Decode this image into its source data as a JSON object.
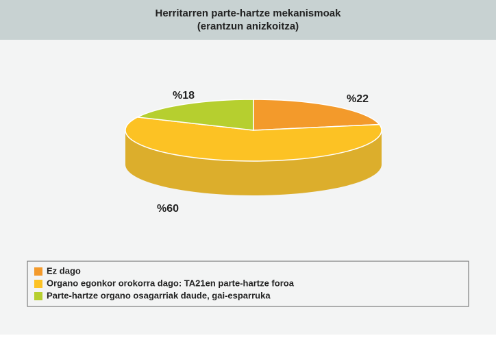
{
  "chart_data": {
    "type": "pie",
    "title": [
      "Herritarren parte-hartze mekanismoak",
      "(erantzun anizkoitza)"
    ],
    "categories": [
      "Ez dago",
      "Organo egonkor orokorra dago: TA21en parte-hartze foroa",
      "Parte-hartze organo osagarriak daude, gai-esparruka"
    ],
    "values": [
      22,
      60,
      18
    ],
    "value_labels": [
      "%22",
      "%60",
      "%18"
    ],
    "colors": [
      "#f39a2b",
      "#fcc224",
      "#b6cf2f"
    ],
    "side_colors": [
      "#d8862a",
      "#dcae2c",
      "#9fb52b"
    ]
  }
}
